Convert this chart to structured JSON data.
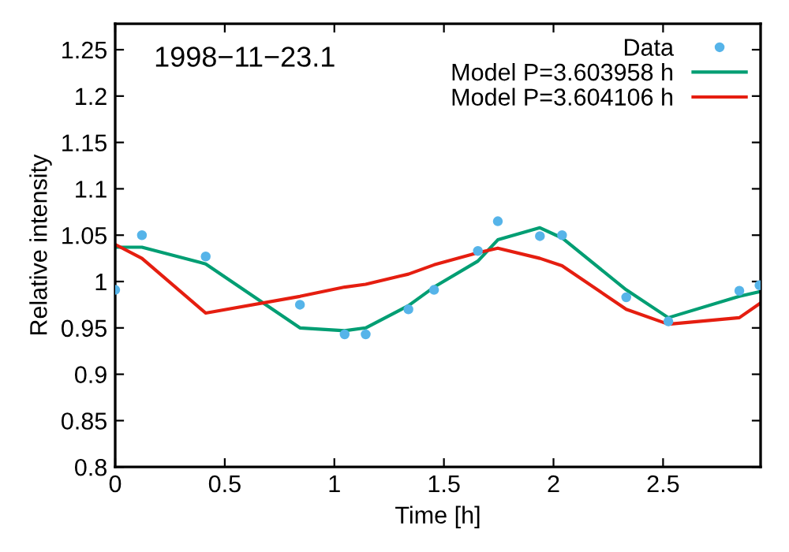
{
  "chart_data": {
    "type": "line",
    "xlabel": "Time [h]",
    "ylabel": "Relative intensity",
    "annotations": [
      "1998−11−23.1"
    ],
    "xlim": [
      0,
      2.945
    ],
    "ylim": [
      0.8,
      1.278
    ],
    "xticks": [
      0,
      0.5,
      1,
      1.5,
      2,
      2.5
    ],
    "yticks": [
      0.8,
      0.85,
      0.9,
      0.95,
      1,
      1.05,
      1.1,
      1.15,
      1.2,
      1.25
    ],
    "grid": false,
    "legend": "top right",
    "series": [
      {
        "name": "Data",
        "type": "scatter",
        "marker": "circle",
        "color": "#56b4e9",
        "x": [
          0,
          0.122,
          0.413,
          0.843,
          1.047,
          1.143,
          1.338,
          1.455,
          1.655,
          1.746,
          1.938,
          2.039,
          2.332,
          2.524,
          2.848,
          2.94
        ],
        "values": [
          0.991,
          1.05,
          1.027,
          0.975,
          0.943,
          0.943,
          0.97,
          0.991,
          1.033,
          1.065,
          1.049,
          1.05,
          0.983,
          0.957,
          0.99,
          0.996
        ]
      },
      {
        "name": "Model P=3.603958 h",
        "color": "#009e73",
        "x": [
          0,
          0.122,
          0.413,
          0.843,
          1.047,
          1.143,
          1.338,
          1.455,
          1.655,
          1.746,
          1.938,
          2.039,
          2.332,
          2.524,
          2.848,
          2.94
        ],
        "values": [
          1.037,
          1.037,
          1.019,
          0.95,
          0.947,
          0.95,
          0.974,
          0.994,
          1.022,
          1.045,
          1.058,
          1.047,
          0.991,
          0.961,
          0.984,
          0.989
        ]
      },
      {
        "name": "Model P=3.604106 h",
        "color": "#e51e10",
        "x": [
          0,
          0.122,
          0.413,
          0.843,
          1.047,
          1.143,
          1.338,
          1.455,
          1.655,
          1.746,
          1.938,
          2.039,
          2.332,
          2.524,
          2.848,
          2.94
        ],
        "values": [
          1.04,
          1.025,
          0.966,
          0.984,
          0.994,
          0.997,
          1.008,
          1.018,
          1.031,
          1.036,
          1.025,
          1.017,
          0.97,
          0.954,
          0.961,
          0.976
        ]
      }
    ]
  }
}
